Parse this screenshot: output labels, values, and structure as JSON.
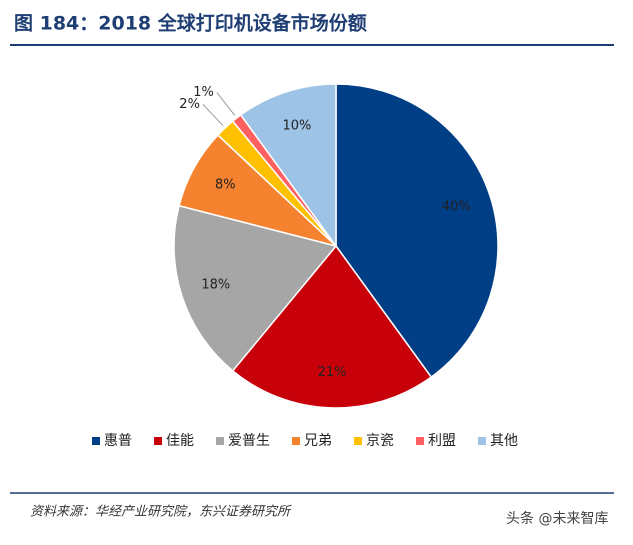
{
  "chart_data": {
    "type": "pie",
    "title": "图 184：2018 全球打印机设备市场份额",
    "categories": [
      "惠普",
      "佳能",
      "爱普生",
      "兄弟",
      "京瓷",
      "利盟",
      "其他"
    ],
    "values": [
      40,
      21,
      18,
      8,
      2,
      1,
      10
    ],
    "value_labels": [
      "40%",
      "21%",
      "18%",
      "8%",
      "2%",
      "1%",
      "10%"
    ],
    "colors": [
      "#003e86",
      "#c8000a",
      "#a6a6a6",
      "#f5822f",
      "#ffc000",
      "#ff6060",
      "#9dc3e6"
    ],
    "legend": "bottom"
  },
  "source": "资料来源：华经产业研究院，东兴证券研究所",
  "watermark": "头条 @未来智库"
}
